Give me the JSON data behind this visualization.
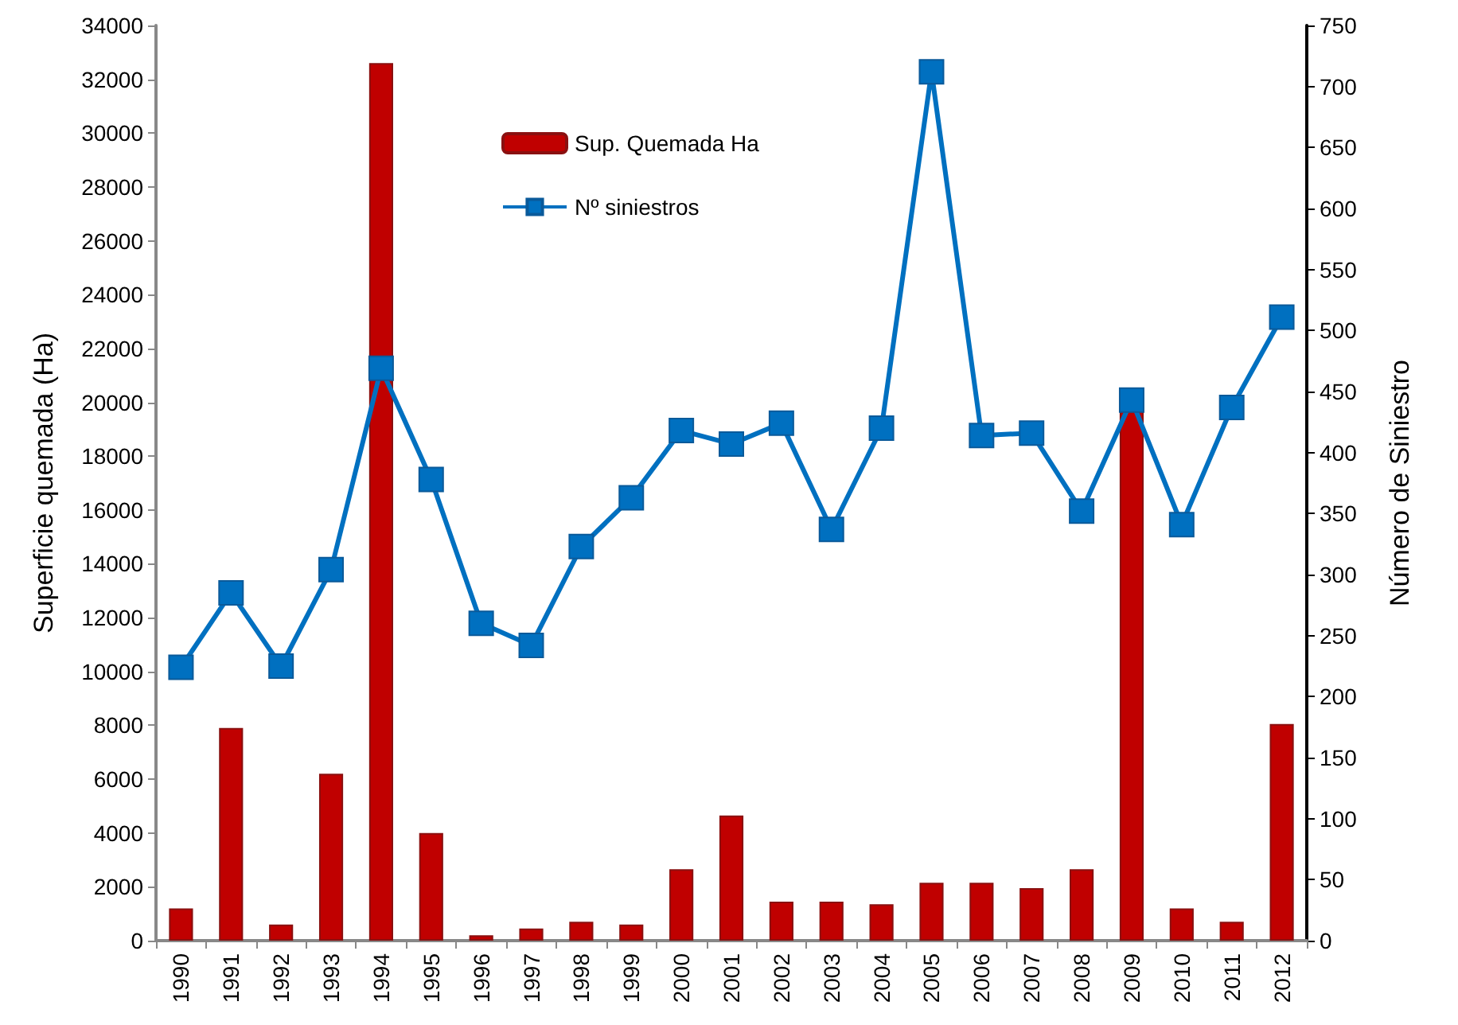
{
  "chart_data": {
    "type": "bar",
    "ylabel": "Superficie quemada (Ha)",
    "y2label": "Número de Siniestro",
    "categories": [
      "1990",
      "1991",
      "1992",
      "1993",
      "1994",
      "1995",
      "1996",
      "1997",
      "1998",
      "1999",
      "2000",
      "2001",
      "2002",
      "2003",
      "2004",
      "2005",
      "2006",
      "2007",
      "2008",
      "2009",
      "2010",
      "2011",
      "2012"
    ],
    "series": [
      {
        "name": "Sup. Quemada Ha",
        "color": "#c00000",
        "values": [
          1200,
          7900,
          600,
          6200,
          32600,
          4000,
          200,
          450,
          700,
          600,
          2650,
          4650,
          1450,
          1450,
          1350,
          2150,
          2150,
          1950,
          2650,
          19700,
          1200,
          700,
          8050
        ]
      },
      {
        "name": "Nº siniestros",
        "type": "line",
        "axis": "y2",
        "color": "#0070c0",
        "values": [
          224,
          285,
          225,
          304,
          469,
          378,
          260,
          242,
          323,
          363,
          418,
          407,
          424,
          337,
          420,
          712,
          414,
          416,
          352,
          443,
          341,
          437,
          511
        ]
      }
    ],
    "ylim": [
      0,
      34000
    ],
    "yticks": [
      0,
      2000,
      4000,
      6000,
      8000,
      10000,
      12000,
      14000,
      16000,
      18000,
      20000,
      22000,
      24000,
      26000,
      28000,
      30000,
      32000,
      34000
    ],
    "y2lim": [
      0,
      750
    ],
    "y2ticks": [
      0,
      50,
      100,
      150,
      200,
      250,
      300,
      350,
      400,
      450,
      500,
      550,
      600,
      650,
      700,
      750
    ],
    "grid": false,
    "legend": "top",
    "marker": "square",
    "line_style": "solid"
  }
}
